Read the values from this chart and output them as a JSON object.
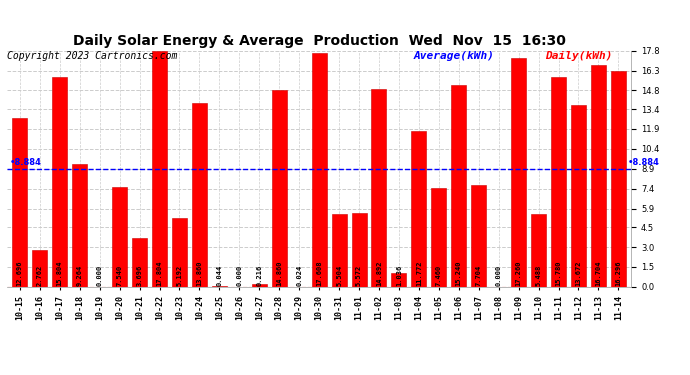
{
  "title": "Daily Solar Energy & Average  Production  Wed  Nov  15  16:30",
  "copyright": "Copyright 2023 Cartronics.com",
  "legend_avg": "Average(kWh)",
  "legend_daily": "Daily(kWh)",
  "average_value": 8.884,
  "categories": [
    "10-15",
    "10-16",
    "10-17",
    "10-18",
    "10-19",
    "10-20",
    "10-21",
    "10-22",
    "10-23",
    "10-24",
    "10-25",
    "10-26",
    "10-27",
    "10-28",
    "10-29",
    "10-30",
    "10-31",
    "11-01",
    "11-02",
    "11-03",
    "11-04",
    "11-05",
    "11-06",
    "11-07",
    "11-08",
    "11-09",
    "11-10",
    "11-11",
    "11-12",
    "11-13",
    "11-14"
  ],
  "values": [
    12.696,
    2.762,
    15.804,
    9.264,
    0.0,
    7.54,
    3.696,
    17.804,
    5.192,
    13.86,
    0.044,
    0.0,
    0.216,
    14.86,
    0.024,
    17.608,
    5.504,
    5.572,
    14.892,
    1.036,
    11.772,
    7.46,
    15.24,
    7.704,
    0.0,
    17.26,
    5.488,
    15.78,
    13.672,
    16.704,
    16.296
  ],
  "bar_color": "#ff0000",
  "bar_edge_color": "#cc0000",
  "avg_line_color": "#0000ff",
  "avg_label_color": "#0000ff",
  "daily_label_color": "#ff0000",
  "title_fontsize": 10,
  "copyright_fontsize": 7,
  "tick_fontsize": 6,
  "value_fontsize": 5,
  "legend_fontsize": 8,
  "ylim": [
    0,
    17.8
  ],
  "yticks": [
    0.0,
    1.5,
    3.0,
    4.5,
    5.9,
    7.4,
    8.9,
    10.4,
    11.9,
    13.4,
    14.8,
    16.3,
    17.8
  ],
  "grid_color": "#cccccc",
  "background_color": "#ffffff"
}
